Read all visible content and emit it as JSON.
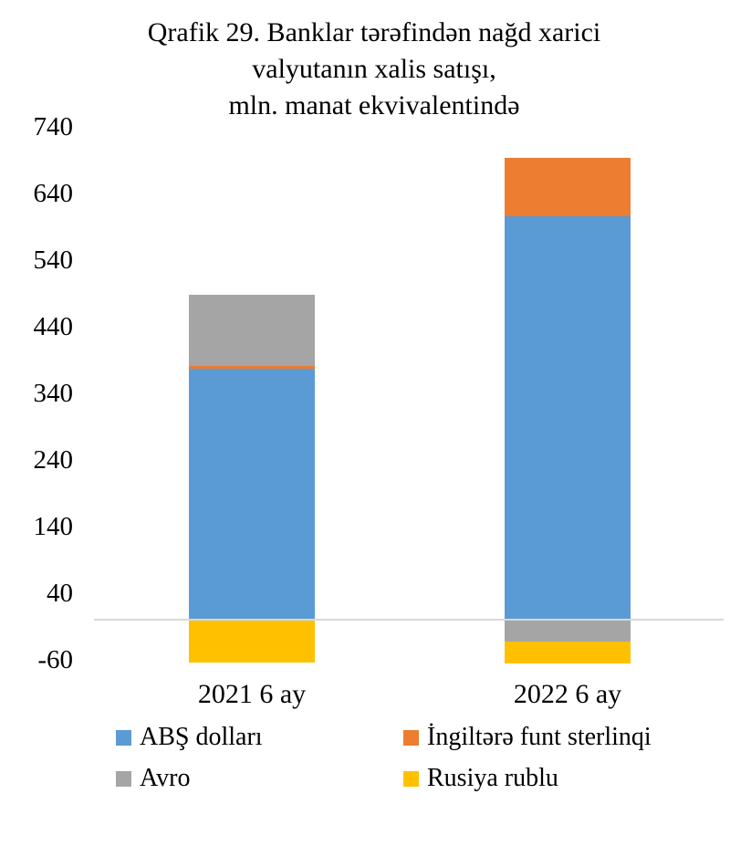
{
  "title": {
    "line1": "Qrafik 29. Banklar tərəfindən nağd xarici",
    "line2": "valyutanın xalis satışı,",
    "line3": "mln. manat ekvivalentində"
  },
  "chart_data": {
    "type": "bar",
    "stacked": true,
    "title": "Qrafik 29. Banklar tərəfindən nağd xarici valyutanın xalis satışı, mln. manat ekvivalentində",
    "categories": [
      "2021 6 ay",
      "2022 6 ay"
    ],
    "series": [
      {
        "name": "ABŞ dolları",
        "color": "#5B9BD5",
        "values": [
          377,
          605
        ]
      },
      {
        "name": "İngiltərə funt sterlinqi",
        "color": "#ED7D31",
        "values": [
          4,
          88
        ]
      },
      {
        "name": "Avro",
        "color": "#A5A5A5",
        "values": [
          107,
          -33
        ]
      },
      {
        "name": "Rusiya rublu",
        "color": "#FFC000",
        "values": [
          -65,
          -33
        ]
      }
    ],
    "y_ticks": [
      740,
      640,
      540,
      440,
      340,
      240,
      140,
      40,
      -60
    ],
    "y_tick_interval": 100,
    "xlabel": "",
    "ylabel": "",
    "grid": "zero-line-only",
    "zero_line_color": "#D9D9D9",
    "legend_position": "bottom",
    "legend_columns": 2
  }
}
